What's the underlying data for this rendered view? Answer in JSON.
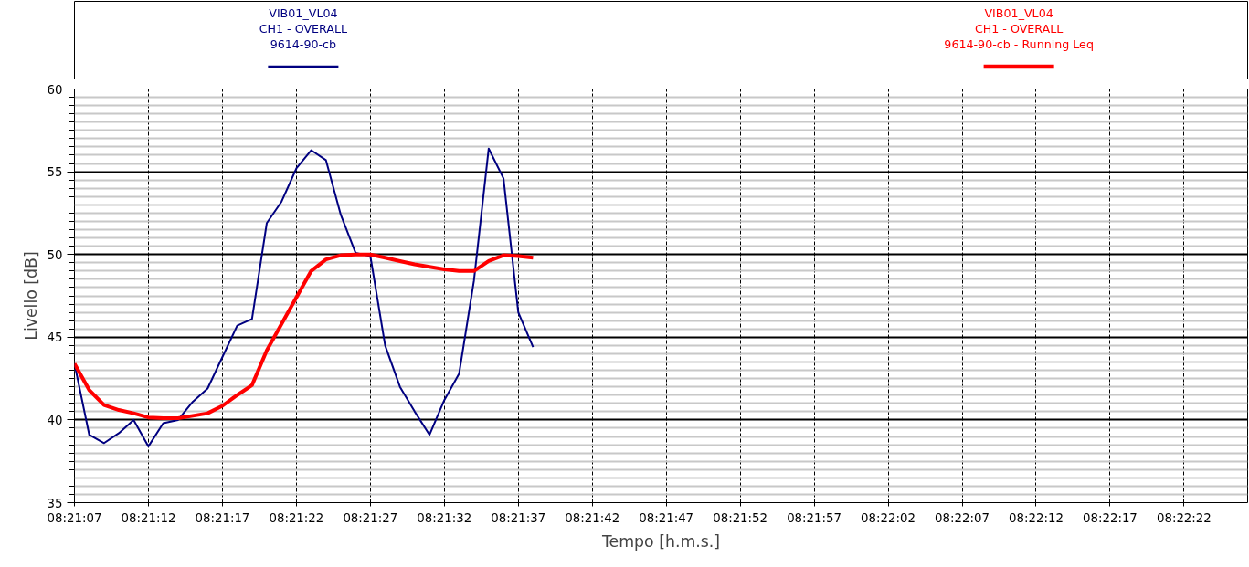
{
  "chart_data": {
    "type": "line",
    "xlabel": "Tempo [h.m.s.]",
    "ylabel": "Livello [dB]",
    "xlim": [
      8.3519444,
      8.3739722
    ],
    "ylim": [
      35,
      60
    ],
    "xticks": [
      {
        "value": 8.3519444,
        "label": "08:21:07"
      },
      {
        "value": 8.3533333,
        "label": "08:21:12"
      },
      {
        "value": 8.3547222,
        "label": "08:21:17"
      },
      {
        "value": 8.3561111,
        "label": "08:21:22"
      },
      {
        "value": 8.3575,
        "label": "08:21:27"
      },
      {
        "value": 8.3588889,
        "label": "08:21:32"
      },
      {
        "value": 8.3602778,
        "label": "08:21:37"
      },
      {
        "value": 8.3616667,
        "label": "08:21:42"
      },
      {
        "value": 8.3630556,
        "label": "08:21:47"
      },
      {
        "value": 8.3644444,
        "label": "08:21:52"
      },
      {
        "value": 8.3658333,
        "label": "08:21:57"
      },
      {
        "value": 8.3672222,
        "label": "08:22:02"
      },
      {
        "value": 8.3686111,
        "label": "08:22:07"
      },
      {
        "value": 8.37,
        "label": "08:22:12"
      },
      {
        "value": 8.3713889,
        "label": "08:22:17"
      },
      {
        "value": 8.3727778,
        "label": "08:22:22"
      }
    ],
    "yticks": [
      35,
      40,
      45,
      50,
      55,
      60
    ],
    "grid": true,
    "legend": "top",
    "marker": "none",
    "line_style": "solid",
    "x": [
      8.3519444,
      8.3522222,
      8.3525,
      8.3527778,
      8.3530556,
      8.3533333,
      8.3536111,
      8.3538889,
      8.3541667,
      8.3544444,
      8.3547222,
      8.355,
      8.3552778,
      8.3555556,
      8.3558333,
      8.3561111,
      8.3563889,
      8.3566667,
      8.3569444,
      8.3572222,
      8.3575,
      8.3577778,
      8.3580556,
      8.3583333,
      8.3586111,
      8.3588889,
      8.3591667,
      8.3594444,
      8.3597222,
      8.36,
      8.3602778,
      8.3605556
    ],
    "series": [
      {
        "name": "VIB01_VL04\nCH1 - OVERALL\n9614-90-cb",
        "color": "#000080",
        "values": [
          43.4,
          39.1,
          38.6,
          39.2,
          40.0,
          38.4,
          39.8,
          40.0,
          41.1,
          41.9,
          43.8,
          45.7,
          46.1,
          51.9,
          53.2,
          55.2,
          56.3,
          55.7,
          52.4,
          50.1,
          49.9,
          44.5,
          42.0,
          40.5,
          39.1,
          41.2,
          42.8,
          48.4,
          56.4,
          54.6,
          46.5,
          44.4
        ]
      },
      {
        "name": "VIB01_VL04\nCH1 - OVERALL\n9614-90-cb - Running Leq",
        "color": "#ff0000",
        "values": [
          43.4,
          41.8,
          40.9,
          40.6,
          40.4,
          40.15,
          40.1,
          40.1,
          40.25,
          40.4,
          40.85,
          41.5,
          42.1,
          44.2,
          45.8,
          47.4,
          49.0,
          49.7,
          49.95,
          50.0,
          50.0,
          49.8,
          49.6,
          49.4,
          49.25,
          49.1,
          49.0,
          49.0,
          49.6,
          49.95,
          49.9,
          49.8
        ]
      }
    ]
  }
}
